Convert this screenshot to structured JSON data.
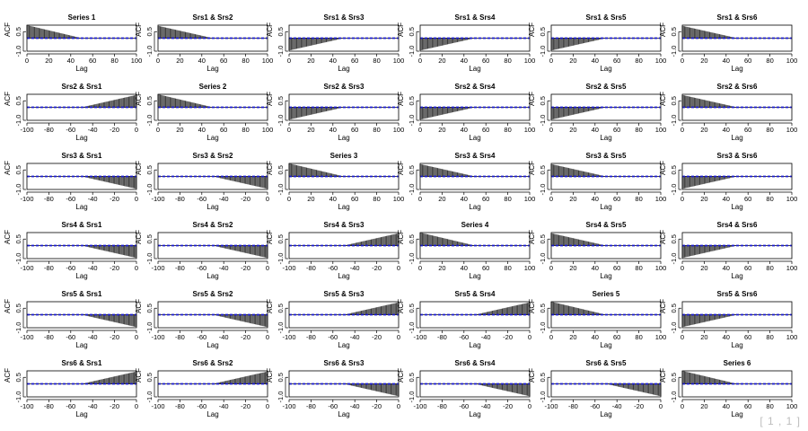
{
  "chart_data": {
    "type": "bar",
    "layout": {
      "rows": 6,
      "cols": 6
    },
    "xlabel": "Lag",
    "ylabel": "ACF",
    "ylim": [
      -1,
      1
    ],
    "y_ticks": [
      "-1.0",
      "0.5"
    ],
    "x_ticks_positive": [
      "0",
      "20",
      "40",
      "60",
      "80",
      "100"
    ],
    "x_ticks_negative": [
      "-100",
      "-80",
      "-60",
      "-40",
      "-20",
      "0"
    ],
    "lag_max": 100,
    "decay_lag": 50,
    "conf_band": 0.02,
    "colors": {
      "bar": "#3a3a3a",
      "conf": "#1a1acc",
      "axis": "#000000"
    },
    "titles": [
      [
        "Series 1",
        "Srs1 & Srs2",
        "Srs1 & Srs3",
        "Srs1 & Srs4",
        "Srs1 & Srs5",
        "Srs1 & Srs6"
      ],
      [
        "Srs2 & Srs1",
        "Series 2",
        "Srs2 & Srs3",
        "Srs2 & Srs4",
        "Srs2 & Srs5",
        "Srs2 & Srs6"
      ],
      [
        "Srs3 & Srs1",
        "Srs3 & Srs2",
        "Series 3",
        "Srs3 & Srs4",
        "Srs3 & Srs5",
        "Srs3 & Srs6"
      ],
      [
        "Srs4 & Srs1",
        "Srs4 & Srs2",
        "Srs4 & Srs3",
        "Series 4",
        "Srs4 & Srs5",
        "Srs4 & Srs6"
      ],
      [
        "Srs5 & Srs1",
        "Srs5 & Srs2",
        "Srs5 & Srs3",
        "Srs5 & Srs4",
        "Series 5",
        "Srs5 & Srs6"
      ],
      [
        "Srs6 & Srs1",
        "Srs6 & Srs2",
        "Srs6 & Srs3",
        "Srs6 & Srs4",
        "Srs6 & Srs5",
        "Series 6"
      ]
    ],
    "signs": [
      [
        1,
        1,
        -1,
        -1,
        -1,
        1
      ],
      [
        1,
        1,
        -1,
        -1,
        -1,
        1
      ],
      [
        -1,
        -1,
        1,
        1,
        1,
        -1
      ],
      [
        -1,
        -1,
        1,
        1,
        1,
        -1
      ],
      [
        -1,
        -1,
        1,
        1,
        1,
        -1
      ],
      [
        1,
        1,
        -1,
        -1,
        -1,
        1
      ]
    ],
    "start_values": [
      [
        1.0,
        0.95,
        -0.95,
        -0.95,
        -0.95,
        0.95
      ],
      [
        0.95,
        1.0,
        -0.95,
        -0.95,
        -0.95,
        0.95
      ],
      [
        -0.95,
        -0.95,
        1.0,
        0.95,
        0.95,
        -0.95
      ],
      [
        -0.95,
        -0.95,
        0.95,
        1.0,
        0.95,
        -0.95
      ],
      [
        -0.95,
        -0.95,
        0.95,
        0.95,
        1.0,
        -0.95
      ],
      [
        0.95,
        0.95,
        -0.95,
        -0.95,
        -0.95,
        1.0
      ]
    ]
  },
  "page_label": "[ 1 , 1 ]"
}
